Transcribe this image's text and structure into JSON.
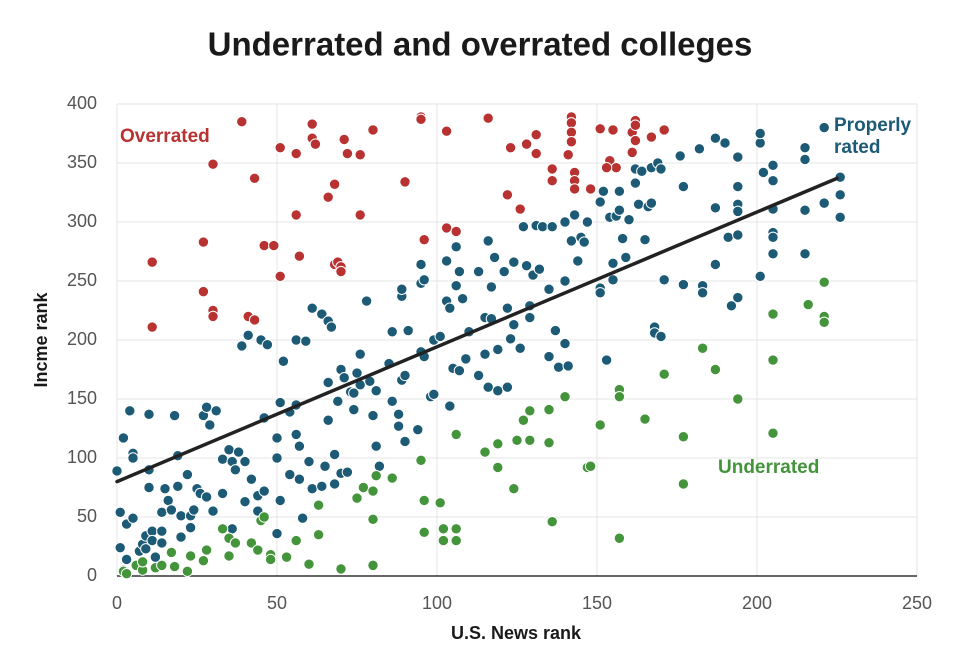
{
  "chart_data": {
    "type": "scatter",
    "title": "Underrated and overrated colleges",
    "x_label": "U.S. News rank",
    "y_label": "Incme rank",
    "xlim": [
      0,
      250
    ],
    "ylim": [
      0,
      400
    ],
    "xticks": [
      0,
      50,
      100,
      150,
      200,
      250
    ],
    "yticks": [
      0,
      50,
      100,
      150,
      200,
      250,
      300,
      350,
      400
    ],
    "grid": true,
    "trend_line": {
      "color": "#222222",
      "x": [
        0,
        225
      ],
      "values": [
        80,
        337
      ]
    },
    "series": [
      {
        "name": "Overrated",
        "color": "#b83232",
        "x": [
          11,
          11,
          27,
          27,
          30,
          30,
          30,
          39,
          41,
          43,
          43,
          46,
          49,
          51,
          51,
          56,
          56,
          57,
          61,
          61,
          62,
          66,
          68,
          68,
          69,
          70,
          70,
          71,
          72,
          76,
          76,
          80,
          90,
          95,
          95,
          96,
          103,
          103,
          106,
          116,
          122,
          123,
          126,
          128,
          131,
          131,
          136,
          136,
          141,
          142,
          142,
          142,
          142,
          143,
          143,
          143,
          148,
          151,
          154,
          155,
          156,
          161,
          161,
          162,
          162,
          162,
          167,
          171,
          153
        ],
        "values": [
          266,
          211,
          283,
          241,
          349,
          225,
          220,
          385,
          220,
          337,
          217,
          280,
          280,
          363,
          254,
          358,
          306,
          271,
          383,
          371,
          366,
          321,
          264,
          332,
          266,
          262,
          258,
          370,
          358,
          357,
          306,
          378,
          334,
          389,
          387,
          285,
          295,
          377,
          292,
          388,
          323,
          363,
          311,
          366,
          374,
          358,
          345,
          335,
          357,
          389,
          384,
          376,
          368,
          342,
          335,
          328,
          328,
          379,
          352,
          378,
          346,
          376,
          359,
          386,
          382,
          369,
          372,
          378,
          346
        ]
      },
      {
        "name": "Properly rated",
        "color": "#1c5a75",
        "x": [
          0,
          1,
          1,
          2,
          2,
          3,
          3,
          4,
          5,
          5,
          5,
          7,
          8,
          9,
          9,
          10,
          10,
          10,
          11,
          11,
          12,
          14,
          14,
          14,
          15,
          16,
          17,
          18,
          19,
          19,
          20,
          20,
          22,
          23,
          23,
          24,
          25,
          26,
          27,
          28,
          28,
          29,
          30,
          31,
          33,
          33,
          35,
          36,
          36,
          37,
          38,
          39,
          40,
          40,
          41,
          42,
          44,
          44,
          45,
          46,
          46,
          47,
          50,
          50,
          50,
          51,
          51,
          52,
          54,
          54,
          56,
          56,
          56,
          57,
          57,
          58,
          59,
          60,
          61,
          61,
          64,
          64,
          65,
          66,
          66,
          66,
          67,
          68,
          68,
          69,
          70,
          70,
          71,
          72,
          73,
          74,
          74,
          75,
          76,
          76,
          78,
          79,
          80,
          81,
          81,
          82,
          85,
          86,
          86,
          88,
          88,
          89,
          89,
          89,
          90,
          90,
          91,
          94,
          95,
          95,
          95,
          96,
          96,
          98,
          99,
          99,
          101,
          103,
          103,
          104,
          104,
          105,
          106,
          106,
          107,
          107,
          108,
          109,
          110,
          113,
          113,
          115,
          115,
          116,
          116,
          117,
          117,
          118,
          119,
          119,
          121,
          122,
          122,
          123,
          124,
          124,
          126,
          127,
          128,
          129,
          129,
          130,
          131,
          132,
          133,
          135,
          135,
          136,
          137,
          138,
          140,
          140,
          140,
          141,
          142,
          143,
          144,
          145,
          146,
          147,
          151,
          151,
          151,
          152,
          153,
          154,
          155,
          155,
          156,
          157,
          157,
          158,
          159,
          160,
          162,
          162,
          163,
          164,
          165,
          166,
          167,
          167,
          168,
          168,
          169,
          170,
          170,
          171,
          176,
          177,
          177,
          182,
          183,
          183,
          187,
          187,
          187,
          190,
          191,
          192,
          194,
          194,
          194,
          194,
          194,
          194,
          201,
          201,
          201,
          202,
          205,
          205,
          205,
          205,
          205,
          205,
          215,
          215,
          215,
          215,
          221,
          221,
          226,
          226,
          226
        ],
        "values": [
          89,
          54,
          24,
          117,
          5,
          44,
          14,
          140,
          104,
          100,
          49,
          21,
          27,
          34,
          23,
          90,
          137,
          75,
          38,
          30,
          16,
          54,
          38,
          28,
          74,
          64,
          56,
          136,
          102,
          76,
          51,
          33,
          86,
          51,
          41,
          56,
          74,
          70,
          136,
          67,
          143,
          128,
          55,
          140,
          99,
          70,
          107,
          97,
          40,
          90,
          105,
          195,
          97,
          63,
          204,
          82,
          68,
          55,
          200,
          134,
          72,
          196,
          100,
          117,
          36,
          147,
          64,
          182,
          86,
          139,
          145,
          120,
          200,
          110,
          82,
          49,
          199,
          97,
          227,
          74,
          222,
          76,
          93,
          216,
          164,
          132,
          211,
          103,
          78,
          148,
          87,
          175,
          168,
          88,
          156,
          155,
          141,
          172,
          162,
          188,
          233,
          165,
          136,
          157,
          110,
          93,
          180,
          148,
          207,
          127,
          137,
          166,
          237,
          243,
          114,
          170,
          208,
          124,
          264,
          248,
          190,
          251,
          186,
          152,
          154,
          200,
          203,
          267,
          233,
          227,
          144,
          176,
          246,
          279,
          258,
          174,
          235,
          184,
          207,
          258,
          170,
          219,
          188,
          284,
          160,
          245,
          218,
          270,
          192,
          157,
          258,
          227,
          160,
          201,
          266,
          213,
          193,
          296,
          263,
          229,
          219,
          255,
          297,
          260,
          296,
          243,
          186,
          296,
          208,
          177,
          250,
          197,
          300,
          178,
          284,
          306,
          267,
          287,
          283,
          300,
          317,
          244,
          240,
          326,
          183,
          304,
          265,
          251,
          305,
          310,
          326,
          286,
          270,
          302,
          345,
          333,
          315,
          343,
          285,
          313,
          346,
          316,
          211,
          206,
          350,
          345,
          203,
          251,
          356,
          330,
          247,
          362,
          246,
          240,
          371,
          312,
          264,
          367,
          287,
          229,
          330,
          355,
          315,
          309,
          289,
          236,
          254,
          367,
          375,
          342,
          348,
          335,
          311,
          291,
          287,
          273,
          363,
          353,
          310,
          273,
          380,
          316,
          338,
          323,
          304
        ]
      },
      {
        "name": "Underrated",
        "color": "#43943a",
        "x": [
          2,
          3,
          6,
          8,
          8,
          12,
          14,
          17,
          18,
          22,
          23,
          27,
          28,
          33,
          35,
          35,
          37,
          42,
          44,
          45,
          46,
          48,
          48,
          53,
          56,
          60,
          63,
          63,
          70,
          75,
          77,
          80,
          80,
          80,
          81,
          86,
          95,
          96,
          96,
          101,
          102,
          102,
          106,
          106,
          106,
          115,
          119,
          119,
          124,
          125,
          127,
          129,
          129,
          135,
          135,
          136,
          140,
          147,
          151,
          157,
          157,
          157,
          165,
          171,
          177,
          177,
          183,
          187,
          194,
          205,
          205,
          205,
          216,
          221,
          221,
          221,
          148
        ],
        "values": [
          4,
          2,
          9,
          5,
          12,
          7,
          9,
          20,
          8,
          4,
          17,
          13,
          22,
          40,
          32,
          17,
          28,
          28,
          22,
          47,
          50,
          18,
          14,
          16,
          30,
          10,
          60,
          35,
          6,
          66,
          75,
          9,
          72,
          48,
          85,
          83,
          98,
          64,
          37,
          62,
          40,
          30,
          120,
          40,
          30,
          105,
          112,
          92,
          74,
          115,
          132,
          115,
          140,
          113,
          141,
          46,
          152,
          92,
          128,
          158,
          152,
          32,
          133,
          171,
          118,
          78,
          193,
          175,
          150,
          222,
          183,
          121,
          230,
          249,
          220,
          215,
          93
        ]
      }
    ]
  }
}
